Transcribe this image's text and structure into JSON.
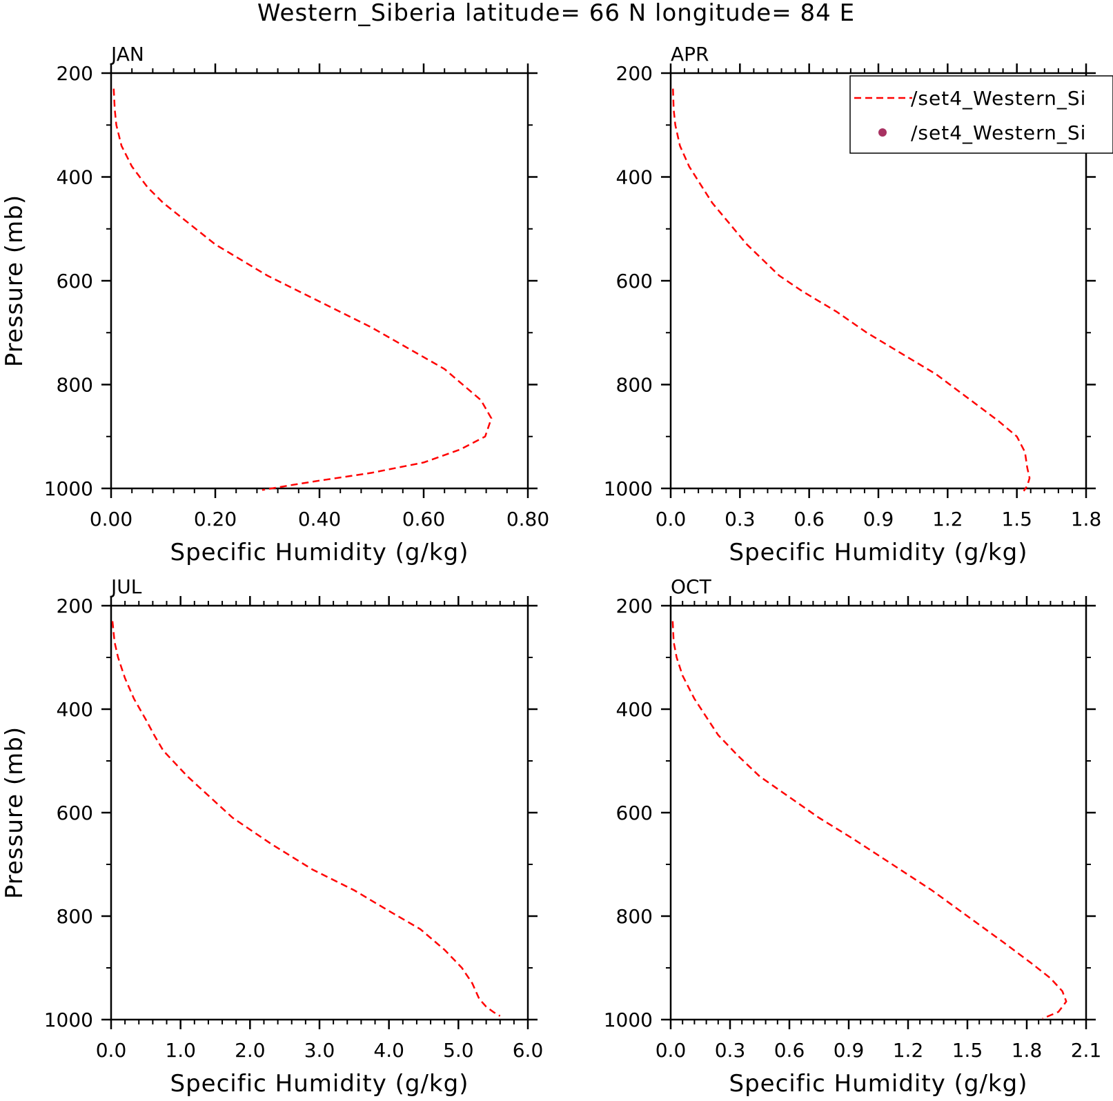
{
  "figure": {
    "title": "Western_Siberia  latitude= 66 N longitude= 84 E"
  },
  "legend": {
    "entries": [
      {
        "label": "/set4_Western_Si",
        "style": "dashed-line",
        "color": "#ff0000"
      },
      {
        "label": "/set4_Western_Si",
        "style": "dot-marker",
        "color": "#a83262"
      }
    ]
  },
  "chart_data": [
    {
      "type": "line",
      "panel_label": "JAN",
      "xlabel": "Specific Humidity (g/kg)",
      "ylabel": "Pressure (mb)",
      "xlim": [
        0,
        0.8
      ],
      "ylim": [
        1000,
        200
      ],
      "xticks": [
        0,
        0.2,
        0.4,
        0.6,
        0.8
      ],
      "xtick_labels": [
        "0.00",
        "0.20",
        "0.40",
        "0.60",
        "0.80"
      ],
      "yticks": [
        200,
        400,
        600,
        800,
        1000
      ],
      "ytick_labels": [
        "200",
        "400",
        "600",
        "800",
        "1000"
      ],
      "series": [
        {
          "color": "#ff0000",
          "dash": "dashed",
          "x": [
            0.005,
            0.007,
            0.01,
            0.02,
            0.04,
            0.07,
            0.1,
            0.2,
            0.3,
            0.36,
            0.42,
            0.5,
            0.57,
            0.64,
            0.71,
            0.73,
            0.718,
            0.67,
            0.6,
            0.5,
            0.4,
            0.35,
            0.29
          ],
          "y": [
            230,
            270,
            300,
            340,
            380,
            420,
            450,
            530,
            590,
            620,
            650,
            690,
            730,
            770,
            830,
            865,
            900,
            925,
            950,
            970,
            985,
            993,
            1003
          ]
        }
      ]
    },
    {
      "type": "line",
      "panel_label": "APR",
      "xlabel": "Specific Humidity (g/kg)",
      "ylabel": "",
      "xlim": [
        0,
        1.8
      ],
      "ylim": [
        1000,
        200
      ],
      "xticks": [
        0,
        0.3,
        0.6,
        0.9,
        1.2,
        1.5,
        1.8
      ],
      "xtick_labels": [
        "0.0",
        "0.3",
        "0.6",
        "0.9",
        "1.2",
        "1.5",
        "1.8"
      ],
      "yticks": [
        200,
        400,
        600,
        800,
        1000
      ],
      "ytick_labels": [
        "200",
        "400",
        "600",
        "800",
        "1000"
      ],
      "series": [
        {
          "color": "#ff0000",
          "dash": "dashed",
          "x": [
            0.01,
            0.013,
            0.02,
            0.04,
            0.08,
            0.13,
            0.18,
            0.33,
            0.47,
            0.57,
            0.72,
            0.85,
            1.0,
            1.15,
            1.3,
            1.42,
            1.5,
            1.535,
            1.545,
            1.555,
            1.545,
            1.53
          ],
          "y": [
            230,
            270,
            300,
            340,
            380,
            415,
            450,
            530,
            590,
            620,
            660,
            700,
            740,
            780,
            830,
            870,
            900,
            930,
            960,
            980,
            995,
            1005
          ]
        }
      ]
    },
    {
      "type": "line",
      "panel_label": "JUL",
      "xlabel": "Specific Humidity (g/kg)",
      "ylabel": "Pressure (mb)",
      "xlim": [
        0,
        6
      ],
      "ylim": [
        1000,
        200
      ],
      "xticks": [
        0,
        1,
        2,
        3,
        4,
        5,
        6
      ],
      "xtick_labels": [
        "0.0",
        "1.0",
        "2.0",
        "3.0",
        "4.0",
        "5.0",
        "6.0"
      ],
      "yticks": [
        200,
        400,
        600,
        800,
        1000
      ],
      "ytick_labels": [
        "200",
        "400",
        "600",
        "800",
        "1000"
      ],
      "series": [
        {
          "color": "#ff0000",
          "dash": "dashed",
          "x": [
            0.02,
            0.05,
            0.1,
            0.2,
            0.33,
            0.5,
            0.62,
            0.75,
            1.1,
            1.75,
            2.3,
            2.9,
            3.5,
            4.0,
            4.45,
            4.8,
            5.05,
            5.2,
            5.3,
            5.4,
            5.5,
            5.6
          ],
          "y": [
            230,
            270,
            300,
            340,
            380,
            420,
            450,
            480,
            530,
            610,
            660,
            710,
            750,
            790,
            825,
            865,
            900,
            930,
            960,
            975,
            985,
            993
          ]
        }
      ]
    },
    {
      "type": "line",
      "panel_label": "OCT",
      "xlabel": "Specific Humidity (g/kg)",
      "ylabel": "",
      "xlim": [
        0,
        2.1
      ],
      "ylim": [
        1000,
        200
      ],
      "xticks": [
        0,
        0.3,
        0.6,
        0.9,
        1.2,
        1.5,
        1.8,
        2.1
      ],
      "xtick_labels": [
        "0.0",
        "0.3",
        "0.6",
        "0.9",
        "1.2",
        "1.5",
        "1.8",
        "2.1"
      ],
      "yticks": [
        200,
        400,
        600,
        800,
        1000
      ],
      "ytick_labels": [
        "200",
        "400",
        "600",
        "800",
        "1000"
      ],
      "series": [
        {
          "color": "#ff0000",
          "dash": "dashed",
          "x": [
            0.01,
            0.015,
            0.03,
            0.06,
            0.12,
            0.18,
            0.24,
            0.34,
            0.45,
            0.6,
            0.75,
            0.92,
            1.12,
            1.32,
            1.5,
            1.68,
            1.82,
            1.92,
            1.98,
            2.0,
            1.96,
            1.88
          ],
          "y": [
            230,
            270,
            300,
            335,
            380,
            415,
            450,
            490,
            530,
            570,
            610,
            650,
            700,
            750,
            800,
            850,
            890,
            920,
            945,
            965,
            985,
            998
          ]
        }
      ]
    }
  ]
}
